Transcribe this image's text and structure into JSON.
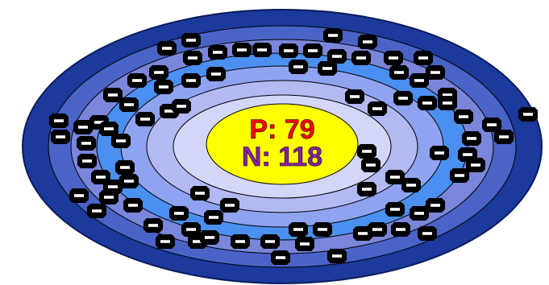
{
  "nucleus": {
    "protons_label": "P: 79",
    "neutrons_label": "N: 118"
  },
  "colors": {
    "shell_outer": "#1b3a9c",
    "shell_2": "#4a63c7",
    "shell_3": "#7a86da",
    "shell_4": "#4b8ff0",
    "shell_5": "#8fa3f0",
    "shell_6": "#b3b9f2",
    "shell_inner": "#d4d6f7",
    "nucleus": "#ffff00",
    "protons_text": "#ff0000",
    "neutrons_text": "#8a1ea8",
    "electron": "#000000",
    "electron_sign": "#ffffff"
  },
  "electron_icon": "electron-minus-icon"
}
